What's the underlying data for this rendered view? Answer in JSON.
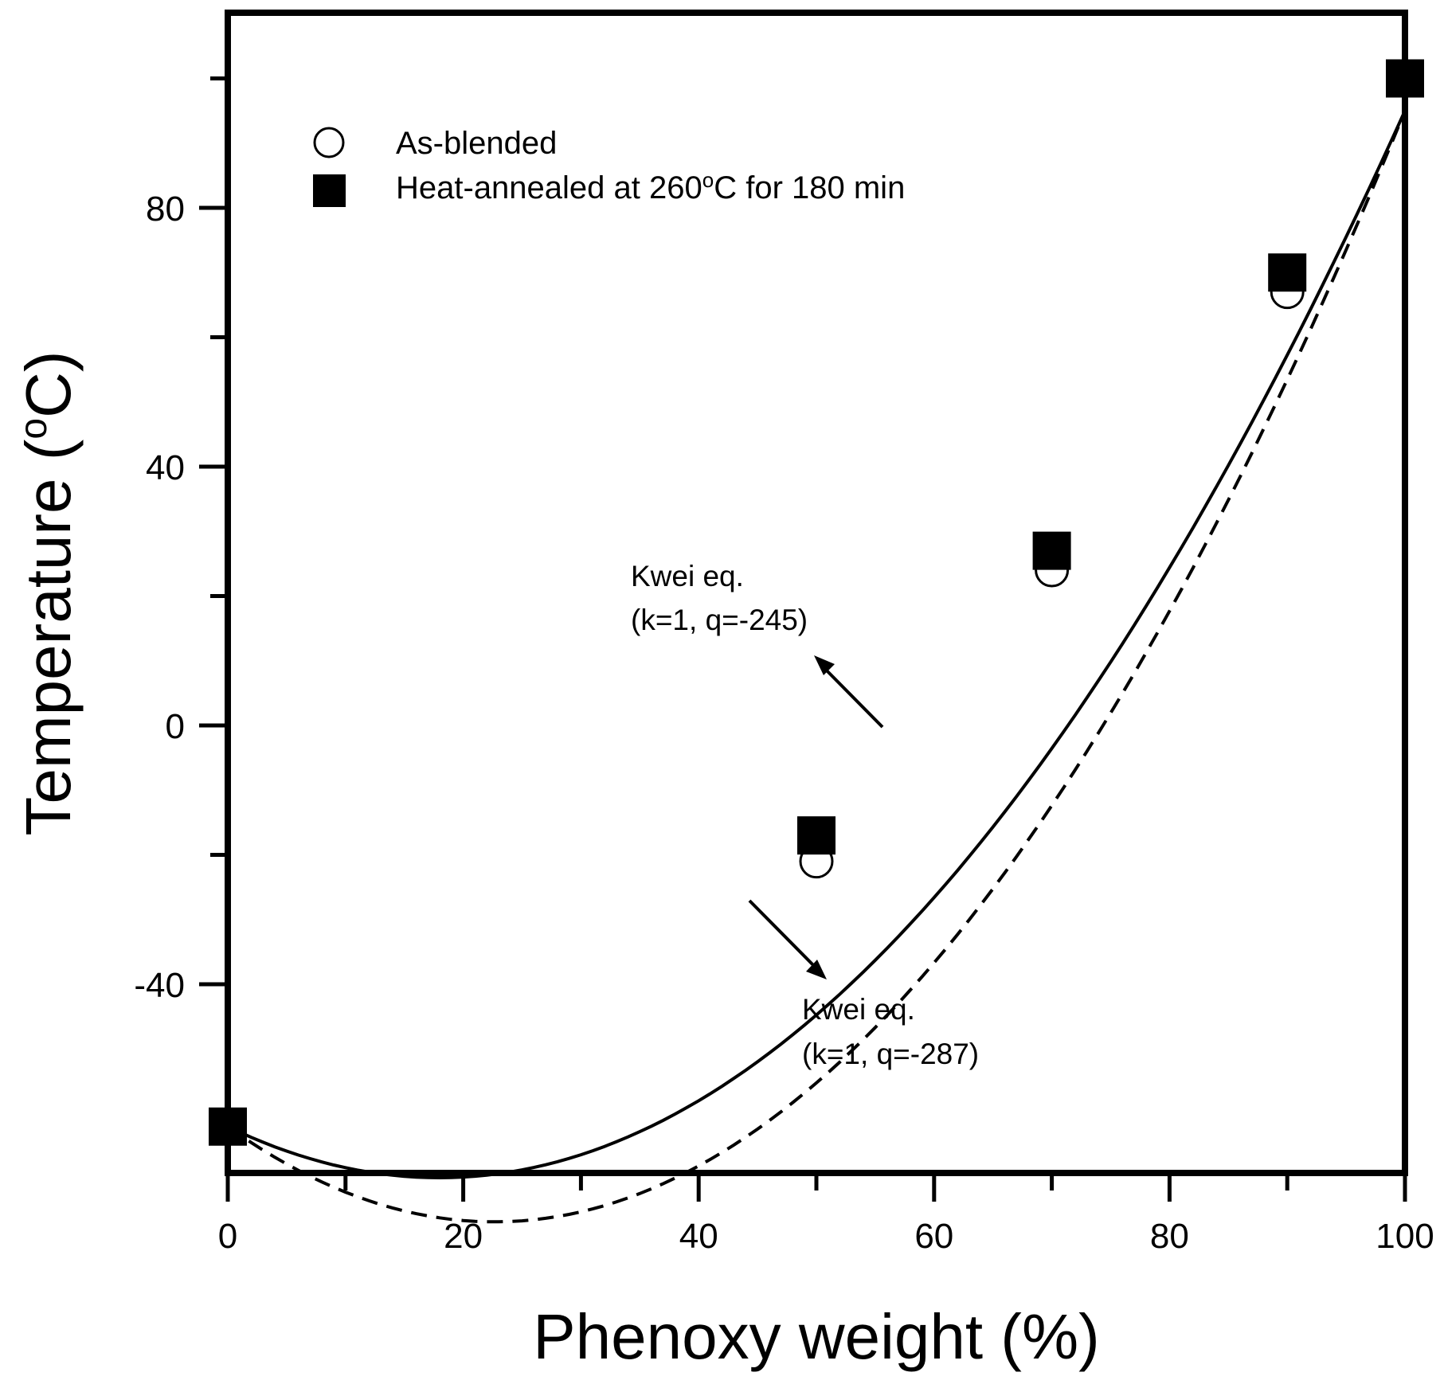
{
  "chart_data": {
    "type": "scatter",
    "title": "",
    "xlabel": "Phenoxy weight (%)",
    "ylabel_main": "Temperature (",
    "ylabel_sup": "o",
    "ylabel_end": "C)",
    "xlim": [
      0,
      100
    ],
    "ylim": [
      -70,
      110
    ],
    "x_ticks": [
      0,
      20,
      40,
      60,
      80,
      100
    ],
    "x_tick_labels": [
      "0",
      "20",
      "40",
      "60",
      "80",
      "100"
    ],
    "x_minor_ticks": [
      10,
      30,
      50,
      70,
      90
    ],
    "y_ticks": [
      -40,
      0,
      40,
      80
    ],
    "y_tick_labels": [
      "-40",
      "0",
      "40",
      "80"
    ],
    "y_minor_ticks": [
      -20,
      20,
      60,
      100
    ],
    "grid": false,
    "legend_position": "top-left",
    "series": [
      {
        "name": "As-blended",
        "marker": "open-circle",
        "x": [
          0,
          50,
          70,
          90,
          100
        ],
        "y": [
          -62,
          -21,
          24,
          67,
          100
        ]
      },
      {
        "name": "Heat-annealed at 260°C for 180 min",
        "marker": "filled-square",
        "x": [
          0,
          50,
          70,
          90,
          100
        ],
        "y": [
          -62,
          -17,
          27,
          70,
          100
        ]
      }
    ],
    "fits": [
      {
        "name": "Kwei eq. (k=1, q=-245)",
        "style": "solid",
        "tg1": -62,
        "tg2": 95,
        "k": 1,
        "q": -245
      },
      {
        "name": "Kwei eq. (k=1, q=-287)",
        "style": "dashed",
        "tg1": -62,
        "tg2": 95,
        "k": 1,
        "q": -287
      }
    ],
    "legend": {
      "item1_label": "As-blended",
      "item2_prefix": "Heat-annealed at 260",
      "item2_sup": "o",
      "item2_suffix": "C for 180 min"
    },
    "annotations": [
      {
        "line1": "Kwei eq.",
        "line2": "(k=1, q=-245)",
        "arrow_points_to": "solid curve near x=57, y=0"
      },
      {
        "line1": "Kwei eq.",
        "line2": "(k=1, q=-287)",
        "arrow_points_to": "dashed curve near x=45, y=-26"
      }
    ]
  }
}
